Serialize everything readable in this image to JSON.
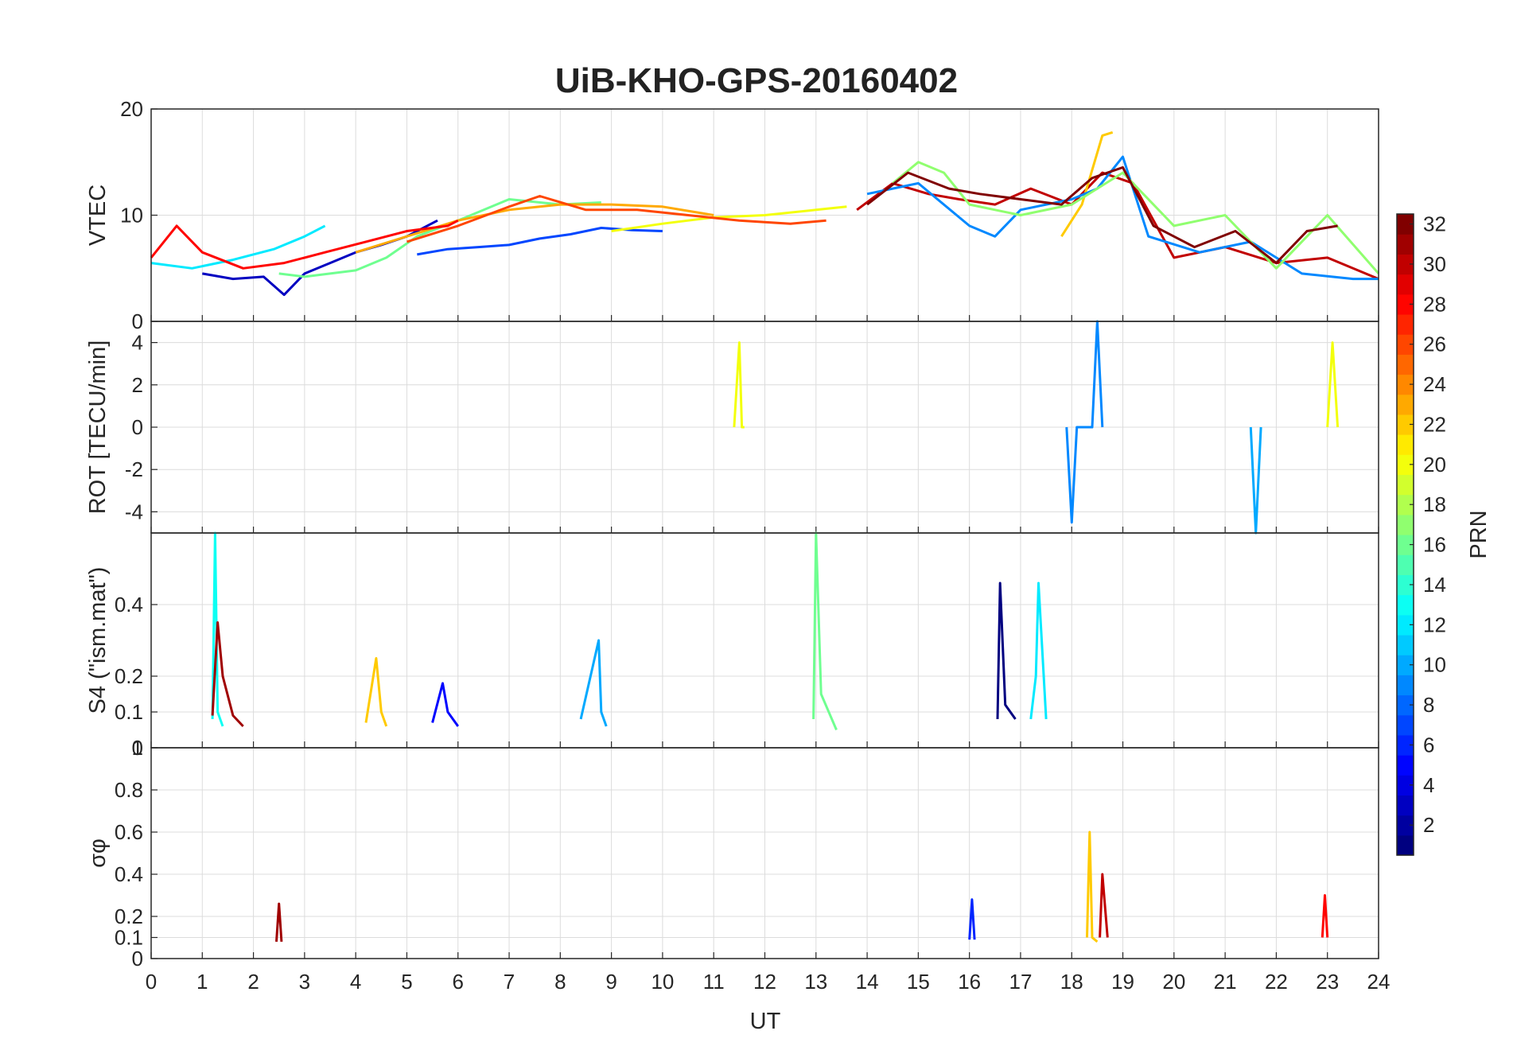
{
  "chart_data": {
    "type": "line",
    "title": "UiB-KHO-GPS-20160402",
    "xlabel": "UT",
    "xlim": [
      0,
      24
    ],
    "x_ticks": [
      "0",
      "1",
      "2",
      "3",
      "4",
      "5",
      "6",
      "7",
      "8",
      "9",
      "10",
      "11",
      "12",
      "13",
      "14",
      "15",
      "16",
      "17",
      "18",
      "19",
      "20",
      "21",
      "22",
      "23",
      "24"
    ],
    "grid": true,
    "colorbar": {
      "label": "PRN",
      "range": [
        1,
        32
      ],
      "colormap": "jet",
      "ticks": [
        "2",
        "4",
        "6",
        "8",
        "10",
        "12",
        "14",
        "16",
        "18",
        "20",
        "22",
        "24",
        "26",
        "28",
        "30",
        "32"
      ]
    },
    "panels": [
      {
        "ylabel": "VTEC",
        "ylim": [
          0,
          20
        ],
        "y_ticks": [
          "0",
          "10",
          "20"
        ],
        "series": [
          {
            "prn": 3,
            "x": [
              1.0,
              1.6,
              2.2,
              2.6,
              3.0,
              3.5,
              4.0,
              4.5,
              5.0,
              5.6
            ],
            "y": [
              4.5,
              4.0,
              4.2,
              2.5,
              4.5,
              5.5,
              6.5,
              7.2,
              8.0,
              9.5
            ]
          },
          {
            "prn": 7,
            "x": [
              5.2,
              5.8,
              6.4,
              7.0,
              7.6,
              8.2,
              8.8,
              9.4,
              10.0
            ],
            "y": [
              6.3,
              6.8,
              7.0,
              7.2,
              7.8,
              8.2,
              8.8,
              8.6,
              8.5
            ]
          },
          {
            "prn": 12,
            "x": [
              0.0,
              0.8,
              1.6,
              2.4,
              3.0,
              3.4
            ],
            "y": [
              5.5,
              5.0,
              5.8,
              6.8,
              8.0,
              9.0
            ]
          },
          {
            "prn": 16,
            "x": [
              2.5,
              3.0,
              3.5,
              4.0,
              4.6,
              5.2,
              6.0,
              7.0,
              8.0,
              8.8
            ],
            "y": [
              4.5,
              4.2,
              4.5,
              4.8,
              6.0,
              8.0,
              9.5,
              11.5,
              11.0,
              11.2
            ]
          },
          {
            "prn": 20,
            "x": [
              9.0,
              10.0,
              11.0,
              12.0,
              13.0,
              13.6
            ],
            "y": [
              8.5,
              9.2,
              9.8,
              10.0,
              10.5,
              10.8
            ]
          },
          {
            "prn": 23,
            "x": [
              4.0,
              5.0,
              6.0,
              7.0,
              8.0,
              9.0,
              10.0,
              11.0
            ],
            "y": [
              6.5,
              8.0,
              9.5,
              10.5,
              11.0,
              11.0,
              10.8,
              10.0
            ]
          },
          {
            "prn": 26,
            "x": [
              5.0,
              6.0,
              7.0,
              7.6,
              8.5,
              9.5,
              10.5,
              11.5,
              12.5,
              13.2
            ],
            "y": [
              7.5,
              9.0,
              10.8,
              11.8,
              10.5,
              10.5,
              10.0,
              9.5,
              9.2,
              9.5
            ]
          },
          {
            "prn": 28,
            "x": [
              0.0,
              0.5,
              1.0,
              1.8,
              2.6,
              3.4,
              4.2,
              5.0,
              5.8,
              6.0
            ],
            "y": [
              6.0,
              9.0,
              6.5,
              5.0,
              5.5,
              6.5,
              7.5,
              8.5,
              9.0,
              9.5
            ]
          },
          {
            "prn": 30,
            "x": [
              13.8,
              14.5,
              15.2,
              15.8,
              16.5,
              17.2,
              18.0,
              18.6,
              19.2,
              20.0,
              21.0,
              22.0,
              23.0,
              24.0
            ],
            "y": [
              10.5,
              13.0,
              12.0,
              11.5,
              11.0,
              12.5,
              11.0,
              14.0,
              13.0,
              6.0,
              7.0,
              5.5,
              6.0,
              4.0
            ]
          },
          {
            "prn": 22,
            "x": [
              17.8,
              18.2,
              18.6,
              18.8
            ],
            "y": [
              8.0,
              11.0,
              17.5,
              17.8
            ]
          },
          {
            "prn": 9,
            "x": [
              14.0,
              15.0,
              16.0,
              16.5,
              17.0,
              18.0,
              18.5,
              19.0,
              19.5,
              20.5,
              21.5,
              22.5,
              23.5,
              24.0
            ],
            "y": [
              12.0,
              13.0,
              9.0,
              8.0,
              10.5,
              11.5,
              12.5,
              15.5,
              8.0,
              6.5,
              7.5,
              4.5,
              4.0,
              4.0
            ]
          },
          {
            "prn": 17,
            "x": [
              14.5,
              15.0,
              15.5,
              16.0,
              17.0,
              18.0,
              19.0,
              20.0,
              21.0,
              22.0,
              23.0,
              24.0
            ],
            "y": [
              13.0,
              15.0,
              14.0,
              11.0,
              10.0,
              11.0,
              14.0,
              9.0,
              10.0,
              5.0,
              10.0,
              4.5
            ]
          },
          {
            "prn": 32,
            "x": [
              14.0,
              14.8,
              15.6,
              16.2,
              17.0,
              17.8,
              18.4,
              19.0,
              19.6,
              20.4,
              21.2,
              22.0,
              22.6,
              23.2
            ],
            "y": [
              11.0,
              14.0,
              12.5,
              12.0,
              11.5,
              11.0,
              13.5,
              14.5,
              9.0,
              7.0,
              8.5,
              5.5,
              8.5,
              9.0
            ]
          }
        ]
      },
      {
        "ylabel": "ROT [TECU/min]",
        "ylim": [
          -5,
          5
        ],
        "y_ticks": [
          "-4",
          "-2",
          "0",
          "2",
          "4"
        ],
        "series": [
          {
            "prn": 20,
            "x": [
              11.4,
              11.5,
              11.55,
              11.6
            ],
            "y": [
              0,
              4.0,
              0,
              0
            ]
          },
          {
            "prn": 9,
            "x": [
              17.9,
              18.0,
              18.1,
              18.4,
              18.5,
              18.6
            ],
            "y": [
              0,
              -4.5,
              0,
              0,
              5.0,
              0
            ]
          },
          {
            "prn": 10,
            "x": [
              21.5,
              21.6,
              21.7
            ],
            "y": [
              0,
              -5.0,
              0
            ]
          },
          {
            "prn": 20,
            "x": [
              23.0,
              23.1,
              23.2
            ],
            "y": [
              0,
              4.0,
              0
            ]
          }
        ]
      },
      {
        "ylabel": "S4 (\"ism.mat\")",
        "ylim": [
          0,
          0.6
        ],
        "y_ticks": [
          "0",
          "0.1",
          "0.2",
          "0.4"
        ],
        "series": [
          {
            "prn": 13,
            "x": [
              1.2,
              1.25,
              1.3,
              1.4
            ],
            "y": [
              0.08,
              0.6,
              0.1,
              0.06
            ]
          },
          {
            "prn": 31,
            "x": [
              1.2,
              1.3,
              1.4,
              1.6,
              1.8
            ],
            "y": [
              0.09,
              0.35,
              0.2,
              0.09,
              0.06
            ]
          },
          {
            "prn": 22,
            "x": [
              4.2,
              4.4,
              4.5,
              4.6
            ],
            "y": [
              0.07,
              0.25,
              0.1,
              0.06
            ]
          },
          {
            "prn": 5,
            "x": [
              5.5,
              5.7,
              5.8,
              6.0
            ],
            "y": [
              0.07,
              0.18,
              0.1,
              0.06
            ]
          },
          {
            "prn": 10,
            "x": [
              8.4,
              8.75,
              8.8,
              8.9
            ],
            "y": [
              0.08,
              0.3,
              0.1,
              0.06
            ]
          },
          {
            "prn": 16,
            "x": [
              12.95,
              13.0,
              13.1,
              13.4
            ],
            "y": [
              0.08,
              0.6,
              0.15,
              0.05
            ]
          },
          {
            "prn": 1,
            "x": [
              16.55,
              16.6,
              16.7,
              16.9
            ],
            "y": [
              0.08,
              0.46,
              0.12,
              0.08
            ]
          },
          {
            "prn": 12,
            "x": [
              17.2,
              17.3,
              17.35,
              17.5
            ],
            "y": [
              0.08,
              0.2,
              0.46,
              0.08
            ]
          }
        ]
      },
      {
        "ylabel": "σφ",
        "ylim": [
          0,
          1
        ],
        "y_ticks": [
          "0",
          "0.1",
          "0.2",
          "0.4",
          "0.6",
          "0.8",
          "1"
        ],
        "series": [
          {
            "prn": 22,
            "x": [
              18.3,
              18.35,
              18.4,
              18.5
            ],
            "y": [
              0.1,
              0.6,
              0.1,
              0.08
            ]
          },
          {
            "prn": 30,
            "x": [
              18.55,
              18.6,
              18.7
            ],
            "y": [
              0.1,
              0.4,
              0.1
            ]
          },
          {
            "prn": 28,
            "x": [
              22.9,
              22.95,
              23.0
            ],
            "y": [
              0.1,
              0.3,
              0.1
            ]
          },
          {
            "prn": 31,
            "x": [
              2.45,
              2.5,
              2.55
            ],
            "y": [
              0.08,
              0.26,
              0.08
            ]
          },
          {
            "prn": 6,
            "x": [
              16.0,
              16.05,
              16.1
            ],
            "y": [
              0.09,
              0.28,
              0.09
            ]
          }
        ]
      }
    ]
  }
}
